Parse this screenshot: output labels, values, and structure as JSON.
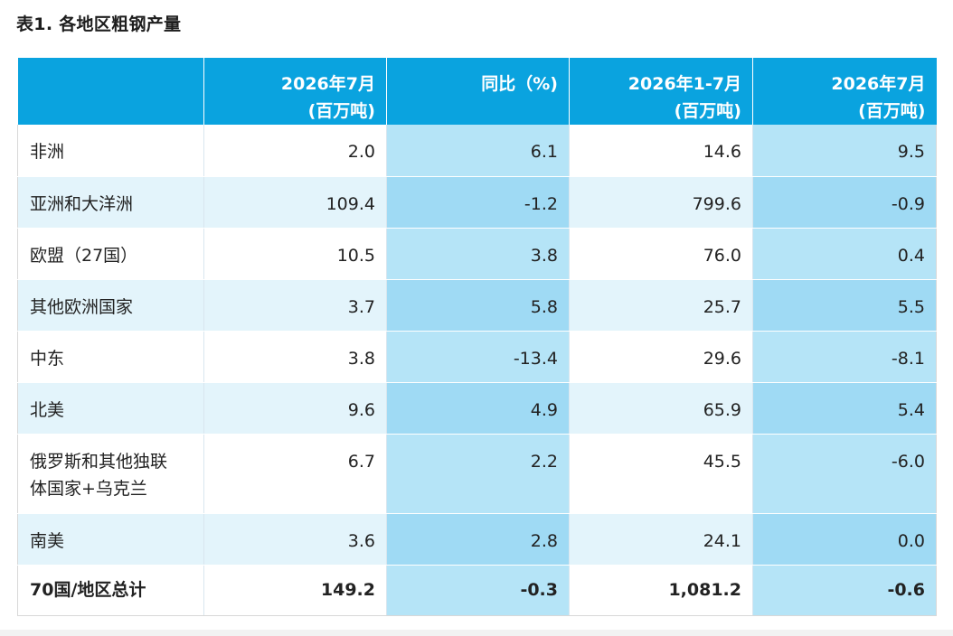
{
  "title": "表1. 各地区粗钢产量",
  "headers": [
    {
      "line1": "",
      "line2": ""
    },
    {
      "line1": "2026年7月",
      "line2": "(百万吨)"
    },
    {
      "line1": "同比（%)",
      "line2": ""
    },
    {
      "line1": "2026年1-7月",
      "line2": "(百万吨)"
    },
    {
      "line1": "2026年7月",
      "line2": "(百万吨)"
    }
  ],
  "rows": [
    {
      "region": "非洲",
      "values": [
        "2.0",
        "6.1",
        "14.6",
        "9.5"
      ]
    },
    {
      "region": "亚洲和大洋洲",
      "values": [
        "109.4",
        "-1.2",
        "799.6",
        "-0.9"
      ]
    },
    {
      "region": "欧盟（27国）",
      "values": [
        "10.5",
        "3.8",
        "76.0",
        "0.4"
      ]
    },
    {
      "region": "其他欧洲国家",
      "values": [
        "3.7",
        "5.8",
        "25.7",
        "5.5"
      ]
    },
    {
      "region": "中东",
      "values": [
        "3.8",
        "-13.4",
        "29.6",
        "-8.1"
      ]
    },
    {
      "region": "北美",
      "values": [
        "9.6",
        "4.9",
        "65.9",
        "5.4"
      ]
    },
    {
      "region_line1": "俄罗斯和其他独联",
      "region_line2": "体国家+乌克兰",
      "values": [
        "6.7",
        "2.2",
        "45.5",
        "-6.0"
      ]
    },
    {
      "region": "南美",
      "values": [
        "3.6",
        "2.8",
        "24.1",
        "0.0"
      ]
    }
  ],
  "total": {
    "region": "70国/地区总计",
    "values": [
      "149.2",
      "-0.3",
      "1,081.2",
      "-0.6"
    ]
  }
}
